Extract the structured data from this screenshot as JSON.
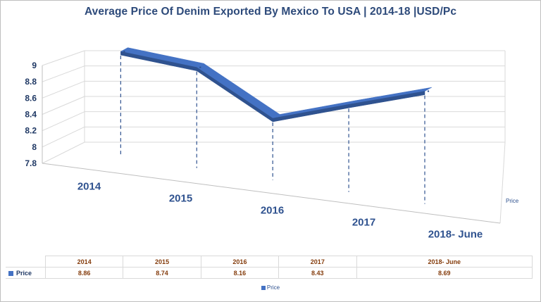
{
  "chart_data": {
    "type": "line",
    "title": "Average Price Of Denim Exported By Mexico To USA | 2014-18 |USD/Pc",
    "categories": [
      "2014",
      "2015",
      "2016",
      "2017",
      "2018- June"
    ],
    "series": [
      {
        "name": "Price",
        "values": [
          8.86,
          8.74,
          8.16,
          8.43,
          8.69
        ]
      }
    ],
    "ylim": [
      7.8,
      9
    ],
    "yticks": [
      "9",
      "8.8",
      "8.6",
      "8.4",
      "8.2",
      "8",
      "7.8"
    ],
    "depth_axis_label": "Price",
    "legend": "bottom",
    "legend_label": "Price",
    "grid": true,
    "colors": {
      "series": "#4472c4",
      "series_dark": "#2f528f",
      "title": "#2d4a7a",
      "values": "#843c0c"
    }
  },
  "table": {
    "row_label": "Price",
    "headers": [
      "2014",
      "2015",
      "2016",
      "2017",
      "2018- June"
    ],
    "values": [
      "8.86",
      "8.74",
      "8.16",
      "8.43",
      "8.69"
    ]
  }
}
